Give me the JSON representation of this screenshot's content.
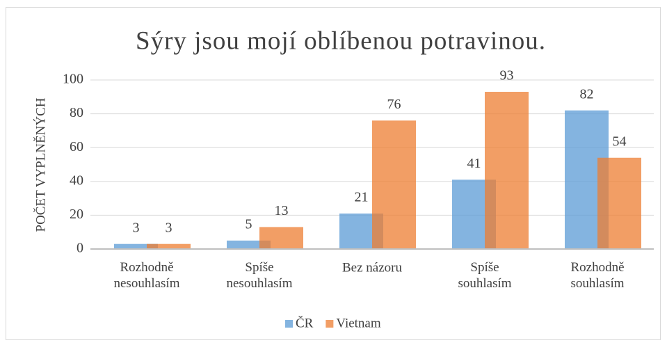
{
  "chart_data": {
    "type": "bar",
    "title": "Sýry jsou mojí oblíbenou potravinou.",
    "y_label": "POČET VYPLNĚNÝCH",
    "categories": [
      "Rozhodně nesouhlasím",
      "Spíše nesouhlasím",
      "Bez názoru",
      "Spíše souhlasím",
      "Rozhodně souhlasím"
    ],
    "series": [
      {
        "name": "ČR",
        "color": "#5b9bd5",
        "values": [
          3,
          5,
          21,
          41,
          82
        ]
      },
      {
        "name": "Vietnam",
        "color": "#ed7d31",
        "values": [
          3,
          13,
          76,
          93,
          54
        ]
      }
    ],
    "ylim": [
      0,
      100
    ],
    "yticks": [
      0,
      20,
      40,
      60,
      80,
      100
    ],
    "grid": true,
    "legend": "bottom"
  }
}
